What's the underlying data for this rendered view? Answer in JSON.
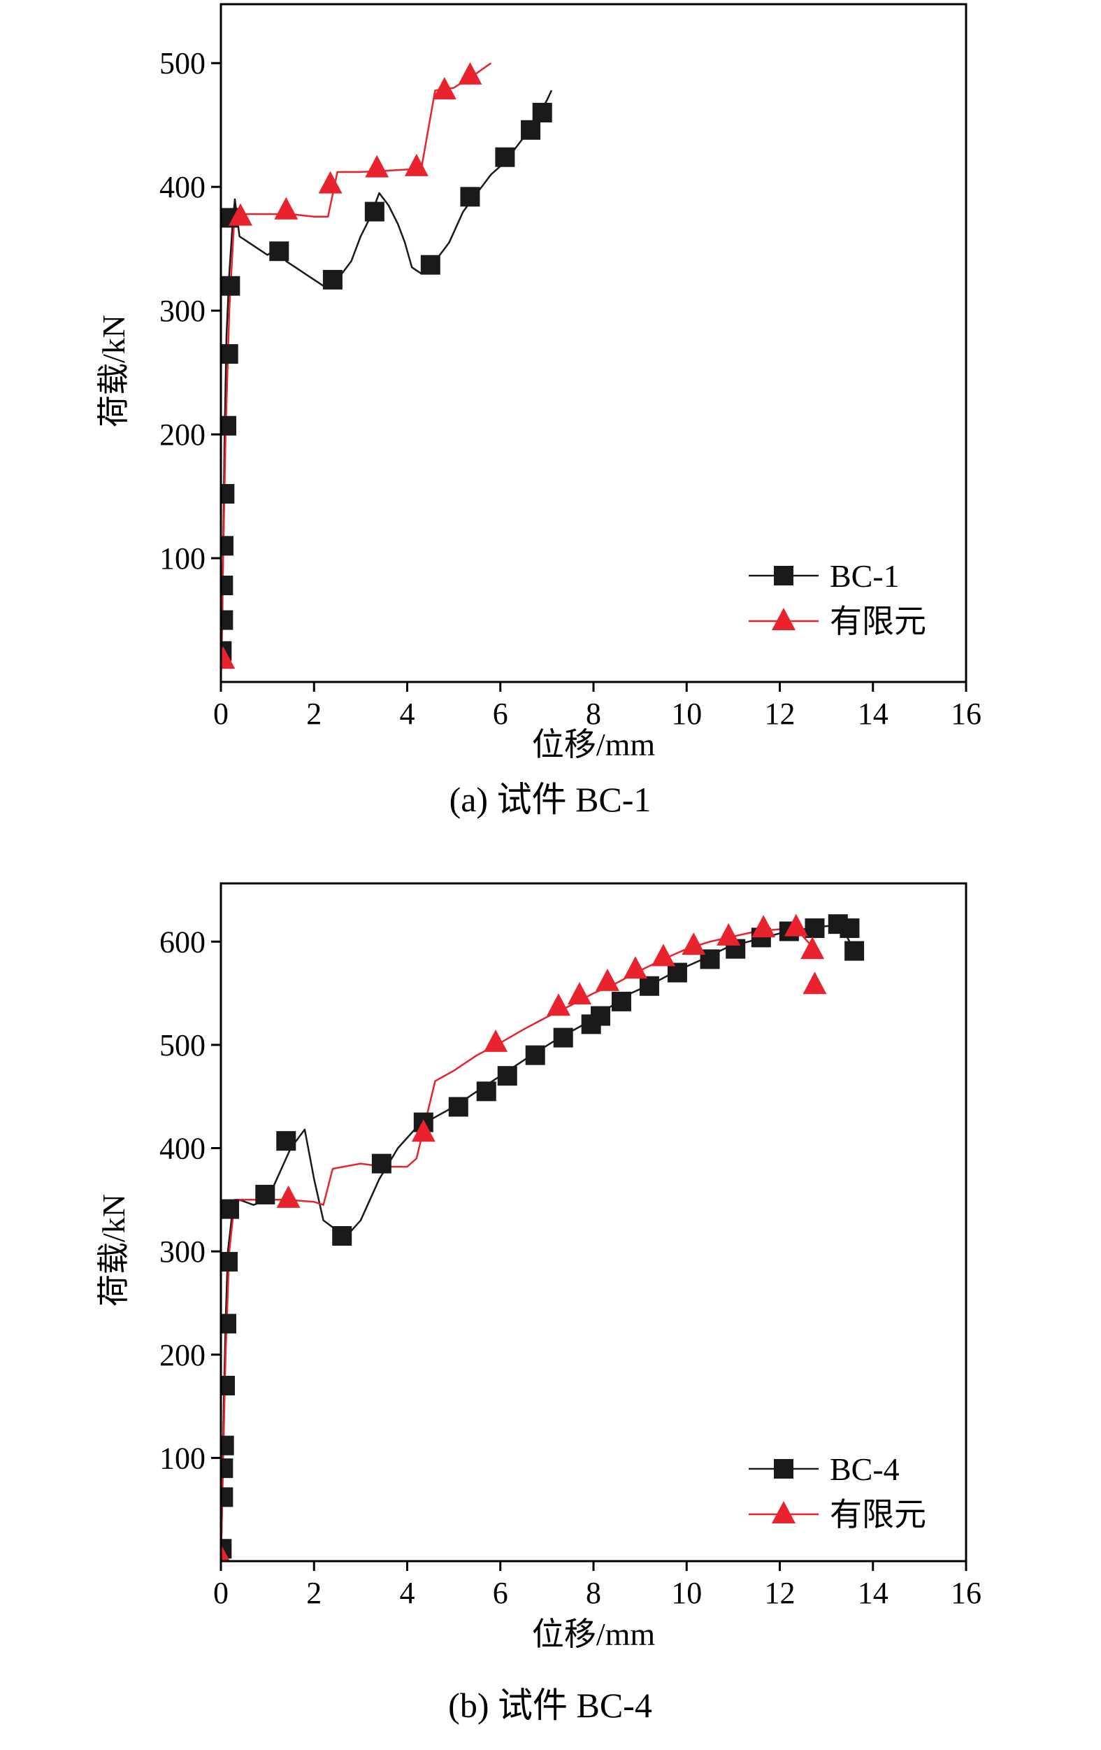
{
  "chart_data": [
    {
      "type": "line",
      "caption": "(a) 试件 BC-1",
      "xlabel": "位移/mm",
      "ylabel": "荷载/kN",
      "xlim": [
        0,
        16
      ],
      "ylim": [
        0,
        500
      ],
      "xticks": [
        0,
        2,
        4,
        6,
        8,
        10,
        12,
        14,
        16
      ],
      "yticks": [
        100,
        200,
        300,
        400,
        500
      ],
      "legend_position": "bottom-right",
      "series": [
        {
          "name": "BC-1",
          "color": "#1a1a1a",
          "marker": "square",
          "line": [
            [
              0,
              0
            ],
            [
              0.03,
              50
            ],
            [
              0.05,
              110
            ],
            [
              0.08,
              200
            ],
            [
              0.12,
              280
            ],
            [
              0.18,
              330
            ],
            [
              0.25,
              370
            ],
            [
              0.3,
              390
            ],
            [
              0.4,
              360
            ],
            [
              0.6,
              355
            ],
            [
              0.8,
              350
            ],
            [
              1.0,
              345
            ],
            [
              1.2,
              350
            ],
            [
              1.4,
              340
            ],
            [
              1.6,
              335
            ],
            [
              1.8,
              330
            ],
            [
              2.0,
              325
            ],
            [
              2.2,
              320
            ],
            [
              2.5,
              325
            ],
            [
              2.8,
              340
            ],
            [
              3.0,
              360
            ],
            [
              3.2,
              375
            ],
            [
              3.4,
              395
            ],
            [
              3.6,
              385
            ],
            [
              3.8,
              370
            ],
            [
              3.95,
              355
            ],
            [
              4.1,
              335
            ],
            [
              4.3,
              330
            ],
            [
              4.6,
              340
            ],
            [
              4.9,
              355
            ],
            [
              5.2,
              380
            ],
            [
              5.5,
              395
            ],
            [
              5.8,
              410
            ],
            [
              6.1,
              420
            ],
            [
              6.4,
              435
            ],
            [
              6.7,
              450
            ],
            [
              7.0,
              470
            ],
            [
              7.1,
              478
            ]
          ],
          "markers": [
            [
              0.02,
              25
            ],
            [
              0.05,
              50
            ],
            [
              0.05,
              78
            ],
            [
              0.06,
              110
            ],
            [
              0.08,
              152
            ],
            [
              0.12,
              207
            ],
            [
              0.16,
              265
            ],
            [
              0.2,
              320
            ],
            [
              0.18,
              375
            ],
            [
              1.25,
              348
            ],
            [
              2.4,
              325
            ],
            [
              3.3,
              380
            ],
            [
              4.5,
              337
            ],
            [
              5.35,
              392
            ],
            [
              6.1,
              424
            ],
            [
              6.65,
              446
            ],
            [
              6.9,
              460
            ]
          ]
        },
        {
          "name": "有限元",
          "color": "#e8232e",
          "marker": "triangle",
          "line": [
            [
              0,
              0
            ],
            [
              0.05,
              100
            ],
            [
              0.1,
              200
            ],
            [
              0.18,
              300
            ],
            [
              0.28,
              370
            ],
            [
              0.4,
              378
            ],
            [
              1.0,
              378
            ],
            [
              1.5,
              378
            ],
            [
              2.0,
              376
            ],
            [
              2.3,
              376
            ],
            [
              2.5,
              412
            ],
            [
              3.0,
              412
            ],
            [
              3.5,
              413
            ],
            [
              4.0,
              414
            ],
            [
              4.3,
              414
            ],
            [
              4.6,
              478
            ],
            [
              5.0,
              480
            ],
            [
              5.5,
              492
            ],
            [
              5.8,
              500
            ]
          ],
          "markers": [
            [
              0.05,
              18
            ],
            [
              0.42,
              376
            ],
            [
              1.4,
              381
            ],
            [
              2.35,
              402
            ],
            [
              3.35,
              415
            ],
            [
              4.2,
              416
            ],
            [
              4.8,
              478
            ],
            [
              5.35,
              490
            ]
          ]
        }
      ]
    },
    {
      "type": "line",
      "caption": "(b) 试件 BC-4",
      "xlabel": "位移/mm",
      "ylabel": "荷载/kN",
      "xlim": [
        0,
        16
      ],
      "ylim": [
        0,
        600
      ],
      "xticks": [
        0,
        2,
        4,
        6,
        8,
        10,
        12,
        14,
        16
      ],
      "yticks": [
        100,
        200,
        300,
        400,
        500,
        600
      ],
      "legend_position": "bottom-right",
      "series": [
        {
          "name": "BC-4",
          "color": "#1a1a1a",
          "marker": "square",
          "line": [
            [
              0,
              0
            ],
            [
              0.03,
              60
            ],
            [
              0.06,
              150
            ],
            [
              0.1,
              230
            ],
            [
              0.15,
              300
            ],
            [
              0.25,
              340
            ],
            [
              0.4,
              350
            ],
            [
              0.7,
              345
            ],
            [
              1.0,
              350
            ],
            [
              1.2,
              370
            ],
            [
              1.5,
              400
            ],
            [
              1.8,
              418
            ],
            [
              2.0,
              370
            ],
            [
              2.2,
              330
            ],
            [
              2.5,
              320
            ],
            [
              2.7,
              315
            ],
            [
              3.0,
              330
            ],
            [
              3.4,
              370
            ],
            [
              3.8,
              400
            ],
            [
              4.2,
              420
            ],
            [
              4.6,
              430
            ],
            [
              5.0,
              440
            ],
            [
              5.5,
              455
            ],
            [
              6.0,
              470
            ],
            [
              6.6,
              488
            ],
            [
              7.2,
              505
            ],
            [
              7.8,
              520
            ],
            [
              8.3,
              535
            ],
            [
              8.8,
              550
            ],
            [
              9.3,
              560
            ],
            [
              9.8,
              572
            ],
            [
              10.3,
              582
            ],
            [
              10.9,
              595
            ],
            [
              11.5,
              602
            ],
            [
              12.0,
              608
            ],
            [
              12.5,
              612
            ],
            [
              13.0,
              615
            ],
            [
              13.3,
              616
            ],
            [
              13.5,
              600
            ],
            [
              13.6,
              590
            ]
          ],
          "markers": [
            [
              0.02,
              12
            ],
            [
              0.05,
              62
            ],
            [
              0.05,
              90
            ],
            [
              0.07,
              112
            ],
            [
              0.09,
              170
            ],
            [
              0.12,
              230
            ],
            [
              0.15,
              290
            ],
            [
              0.18,
              341
            ],
            [
              0.95,
              355
            ],
            [
              1.4,
              407
            ],
            [
              2.6,
              315
            ],
            [
              3.45,
              385
            ],
            [
              4.35,
              425
            ],
            [
              5.1,
              440
            ],
            [
              5.7,
              455
            ],
            [
              6.15,
              470
            ],
            [
              6.75,
              490
            ],
            [
              7.35,
              507
            ],
            [
              7.95,
              520
            ],
            [
              8.15,
              528
            ],
            [
              8.6,
              542
            ],
            [
              9.2,
              557
            ],
            [
              9.8,
              570
            ],
            [
              10.5,
              583
            ],
            [
              11.05,
              593
            ],
            [
              11.6,
              604
            ],
            [
              12.2,
              610
            ],
            [
              12.75,
              613
            ],
            [
              13.25,
              617
            ],
            [
              13.5,
              613
            ],
            [
              13.6,
              591
            ]
          ]
        },
        {
          "name": "有限元",
          "color": "#e8232e",
          "marker": "triangle",
          "line": [
            [
              0,
              0
            ],
            [
              0.05,
              100
            ],
            [
              0.1,
              200
            ],
            [
              0.18,
              300
            ],
            [
              0.3,
              350
            ],
            [
              0.8,
              350
            ],
            [
              1.4,
              350
            ],
            [
              2.0,
              348
            ],
            [
              2.2,
              345
            ],
            [
              2.4,
              380
            ],
            [
              3.0,
              385
            ],
            [
              3.5,
              382
            ],
            [
              4.0,
              382
            ],
            [
              4.2,
              390
            ],
            [
              4.6,
              465
            ],
            [
              5.0,
              475
            ],
            [
              5.5,
              490
            ],
            [
              6.0,
              502
            ],
            [
              6.5,
              515
            ],
            [
              7.0,
              527
            ],
            [
              7.5,
              538
            ],
            [
              8.0,
              550
            ],
            [
              8.5,
              560
            ],
            [
              9.0,
              572
            ],
            [
              9.5,
              583
            ],
            [
              10.0,
              593
            ],
            [
              10.5,
              600
            ],
            [
              11.0,
              605
            ],
            [
              11.5,
              610
            ],
            [
              12.0,
              612
            ],
            [
              12.4,
              610
            ],
            [
              12.6,
              600
            ],
            [
              12.8,
              590
            ]
          ],
          "markers": [
            [
              0.02,
              2
            ],
            [
              1.45,
              351
            ],
            [
              4.35,
              415
            ],
            [
              5.9,
              502
            ],
            [
              7.25,
              537
            ],
            [
              7.7,
              548
            ],
            [
              8.3,
              561
            ],
            [
              8.9,
              573
            ],
            [
              9.5,
              585
            ],
            [
              10.15,
              596
            ],
            [
              10.9,
              605
            ],
            [
              11.65,
              613
            ],
            [
              12.35,
              614
            ],
            [
              12.7,
              592
            ],
            [
              12.75,
              558
            ]
          ]
        }
      ]
    }
  ]
}
